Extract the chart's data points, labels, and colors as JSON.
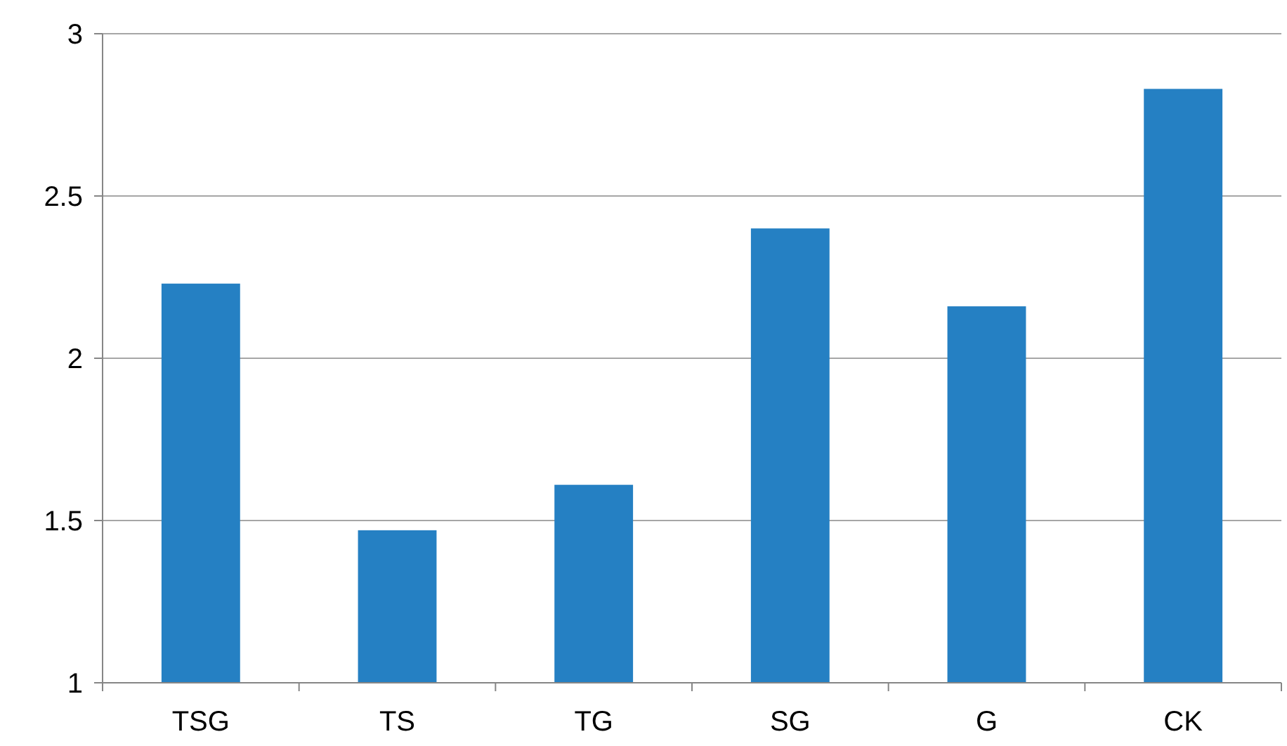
{
  "chart_data": {
    "type": "bar",
    "categories": [
      "TSG",
      "TS",
      "TG",
      "SG",
      "G",
      "CK"
    ],
    "values": [
      2.23,
      1.47,
      1.61,
      2.4,
      2.16,
      2.83
    ],
    "color": "#2580c3",
    "ylim": [
      1,
      3
    ],
    "yticks": [
      1,
      1.5,
      2,
      2.5,
      3
    ],
    "grid": "y"
  }
}
